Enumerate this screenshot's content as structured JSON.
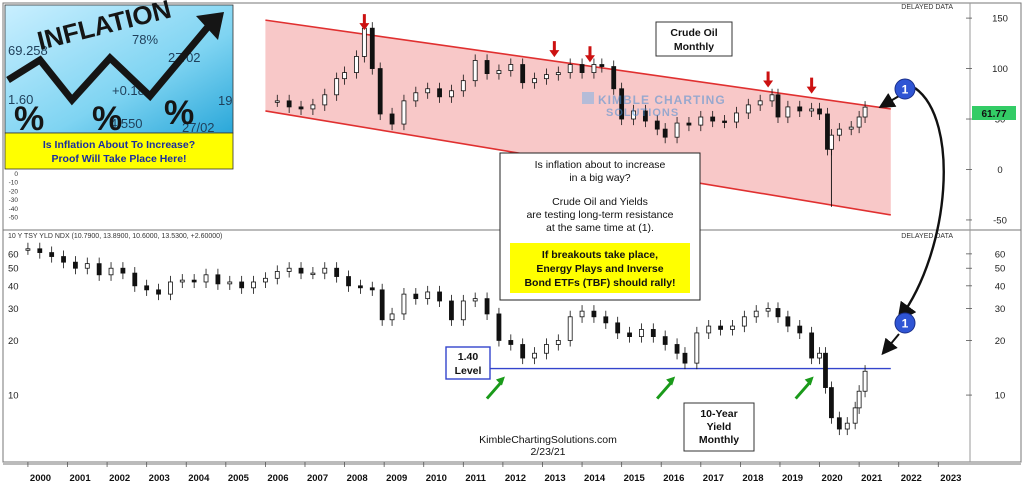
{
  "header": {
    "top_status": "DELAYED DATA",
    "bottom_status": "DELAYED DATA",
    "bottom_symbol_line": "10 Y TSY YLD NDX (10.7900, 13.8900, 10.6000, 13.5300, +2.60000)"
  },
  "inset": {
    "banner_word": "INFLATION",
    "banner_numbers": [
      "69.258",
      "27/02",
      "+0.18",
      "4.550",
      "78%",
      "1.60",
      "19",
      "27/02"
    ],
    "percent_glyph": "%",
    "caption_lines": [
      "Is Inflation About To Increase?",
      "Proof Will Take Place Here!"
    ]
  },
  "labels": {
    "crude_title": [
      "Crude Oil",
      "Monthly"
    ],
    "yield_title": [
      "10-Year",
      "Yield",
      "Monthly"
    ],
    "level_box": [
      "1.40",
      "Level"
    ],
    "watermark_main": "KIMBLE CHARTING",
    "watermark_sub": "SOLUTIONS",
    "marker": "1",
    "last_price": "61.77",
    "footer_site": "KimbleChartingSolutions.com",
    "footer_date": "2/23/21"
  },
  "annotation": {
    "lines": [
      "Is inflation about to increase",
      "in a big way?",
      "",
      "Crude Oil and Yields",
      "are testing long-term resistance",
      "at the same time at (1)."
    ],
    "highlight_lines": [
      "If breakouts take place,",
      "Energy Plays and Inverse",
      "Bond ETFs (TBF) should rally!"
    ]
  },
  "colors": {
    "channel_fill": "#f8c8c8",
    "channel_line": "#e03030",
    "red_arrow": "#cc1111",
    "green_arrow": "#1a9a1a",
    "support_line": "#3344cc",
    "marker_fill": "#2f55d4",
    "highlight": "#ffff00",
    "candle": "#111111"
  },
  "chart_data": [
    {
      "type": "candlestick",
      "title": "Crude Oil Monthly",
      "x_ticks": [
        "2000",
        "2001",
        "2002",
        "2003",
        "2004",
        "2005",
        "2006",
        "2007",
        "2008",
        "2009",
        "2010",
        "2011",
        "2012",
        "2013",
        "2014",
        "2015",
        "2016",
        "2017",
        "2018",
        "2019",
        "2020",
        "2021",
        "2022",
        "2023"
      ],
      "y_ticks": [
        "150",
        "100",
        "50",
        "0",
        "-50"
      ],
      "left_axis_ticks": [
        "100",
        "90",
        "80",
        "70",
        "60",
        "50",
        "40",
        "30",
        "20",
        "10",
        "0",
        "-10",
        "-20",
        "-30",
        "-40",
        "-50"
      ],
      "ylim": [
        -55,
        160
      ],
      "last_value": 61.77,
      "x": [
        2006.3,
        2006.6,
        2006.9,
        2007.2,
        2007.5,
        2007.8,
        2008.0,
        2008.3,
        2008.5,
        2008.7,
        2008.9,
        2009.2,
        2009.5,
        2009.8,
        2010.1,
        2010.4,
        2010.7,
        2011.0,
        2011.3,
        2011.6,
        2011.9,
        2012.2,
        2012.5,
        2012.8,
        2013.1,
        2013.4,
        2013.7,
        2014.0,
        2014.3,
        2014.5,
        2014.8,
        2015.0,
        2015.3,
        2015.6,
        2015.9,
        2016.1,
        2016.4,
        2016.7,
        2017.0,
        2017.3,
        2017.6,
        2017.9,
        2018.2,
        2018.5,
        2018.8,
        2018.95,
        2019.2,
        2019.5,
        2019.8,
        2020.0,
        2020.2,
        2020.3,
        2020.5,
        2020.8,
        2021.0,
        2021.15
      ],
      "values": [
        68,
        62,
        60,
        64,
        74,
        90,
        96,
        112,
        140,
        100,
        55,
        45,
        68,
        76,
        80,
        72,
        78,
        88,
        108,
        95,
        98,
        104,
        86,
        90,
        94,
        96,
        104,
        96,
        104,
        102,
        80,
        50,
        58,
        48,
        40,
        32,
        46,
        44,
        52,
        48,
        47,
        56,
        64,
        68,
        74,
        52,
        62,
        58,
        60,
        55,
        20,
        34,
        40,
        42,
        52,
        61.77
      ],
      "resistance_line": {
        "x": [
          2006.0,
          2021.8
        ],
        "y": [
          148,
          60
        ]
      },
      "support_line": {
        "x": [
          2006.0,
          2021.8
        ],
        "y": [
          58,
          -45
        ]
      },
      "red_arrows_at": [
        2008.5,
        2013.3,
        2014.2,
        2018.7,
        2019.8
      ],
      "spike_low": {
        "x": 2020.3,
        "y": -37
      }
    },
    {
      "type": "candlestick",
      "title": "10-Year Yield Monthly",
      "scale": "log",
      "x_ticks": [
        "2000",
        "2001",
        "2002",
        "2003",
        "2004",
        "2005",
        "2006",
        "2007",
        "2008",
        "2009",
        "2010",
        "2011",
        "2012",
        "2013",
        "2014",
        "2015",
        "2016",
        "2017",
        "2018",
        "2019",
        "2020",
        "2021",
        "2022",
        "2023"
      ],
      "y_ticks": [
        60,
        50,
        40,
        30,
        20,
        10
      ],
      "ylim": [
        4.5,
        68
      ],
      "x": [
        2000.0,
        2000.3,
        2000.6,
        2000.9,
        2001.2,
        2001.5,
        2001.8,
        2002.1,
        2002.4,
        2002.7,
        2003.0,
        2003.3,
        2003.6,
        2003.9,
        2004.2,
        2004.5,
        2004.8,
        2005.1,
        2005.4,
        2005.7,
        2006.0,
        2006.3,
        2006.6,
        2006.9,
        2007.2,
        2007.5,
        2007.8,
        2008.1,
        2008.4,
        2008.7,
        2008.95,
        2009.2,
        2009.5,
        2009.8,
        2010.1,
        2010.4,
        2010.7,
        2011.0,
        2011.3,
        2011.6,
        2011.9,
        2012.2,
        2012.5,
        2012.8,
        2013.1,
        2013.4,
        2013.7,
        2014.0,
        2014.3,
        2014.6,
        2014.9,
        2015.2,
        2015.5,
        2015.8,
        2016.1,
        2016.4,
        2016.6,
        2016.9,
        2017.2,
        2017.5,
        2017.8,
        2018.1,
        2018.4,
        2018.7,
        2018.95,
        2019.2,
        2019.5,
        2019.8,
        2020.0,
        2020.15,
        2020.3,
        2020.5,
        2020.7,
        2020.9,
        2021.0,
        2021.15
      ],
      "values": [
        64,
        61,
        58,
        54,
        50,
        53,
        46,
        50,
        47,
        40,
        38,
        36,
        42,
        43,
        42,
        46,
        41,
        42,
        39,
        42,
        44,
        48,
        50,
        47,
        47,
        50,
        45,
        40,
        39,
        38,
        26,
        28,
        36,
        34,
        37,
        33,
        26,
        33,
        34,
        28,
        20,
        19,
        16,
        17,
        19,
        20,
        27,
        29,
        27,
        25,
        22,
        21,
        23,
        21,
        19,
        17,
        15,
        22,
        24,
        23,
        24,
        27,
        29,
        30,
        27,
        24,
        22,
        16,
        17,
        11,
        7.5,
        6.5,
        7,
        8.5,
        10.5,
        13.53
      ],
      "support_line": {
        "x": [
          2011.5,
          2021.8
        ],
        "y": [
          14.0,
          14.0
        ]
      },
      "support_label": "1.40 Level",
      "green_arrows_at": [
        2011.9,
        2016.2,
        2019.7
      ]
    }
  ]
}
